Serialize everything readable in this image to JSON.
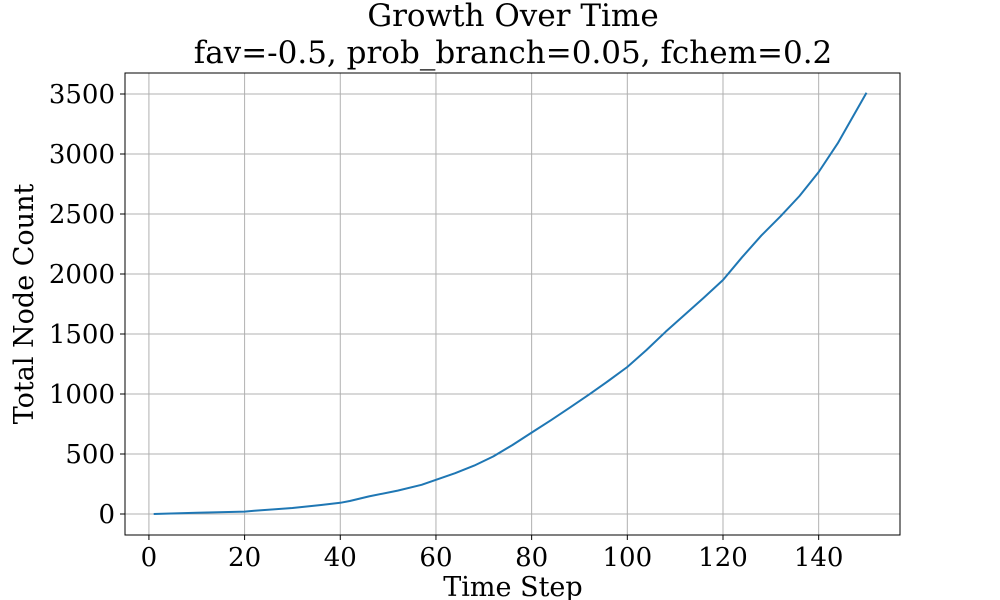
{
  "chart_data": {
    "type": "line",
    "title": "Growth Over Time",
    "subtitle": "fav=-0.5, prob_branch=0.05, fchem=0.2",
    "xlabel": "Time Step",
    "ylabel": "Total Node Count",
    "xlim": [
      -5,
      157
    ],
    "ylim": [
      -175,
      3675
    ],
    "xticks": [
      0,
      20,
      40,
      60,
      80,
      100,
      120,
      140
    ],
    "yticks": [
      0,
      500,
      1000,
      1500,
      2000,
      2500,
      3000,
      3500
    ],
    "grid": true,
    "line_color": "#1f77b4",
    "series": [
      {
        "x": [
          1,
          10,
          20,
          22,
          30,
          36,
          40,
          42,
          46,
          52,
          57,
          60,
          64,
          68,
          72,
          76,
          80,
          84,
          88,
          92,
          96,
          100,
          104,
          108,
          112,
          116,
          120,
          124,
          128,
          132,
          136,
          140,
          144,
          148,
          150
        ],
        "values": [
          0,
          10,
          20,
          27,
          50,
          75,
          93,
          108,
          147,
          195,
          243,
          285,
          340,
          403,
          480,
          575,
          678,
          781,
          887,
          995,
          1108,
          1225,
          1367,
          1518,
          1660,
          1803,
          1950,
          2140,
          2320,
          2480,
          2650,
          2850,
          3090,
          3370,
          3510
        ]
      }
    ]
  }
}
